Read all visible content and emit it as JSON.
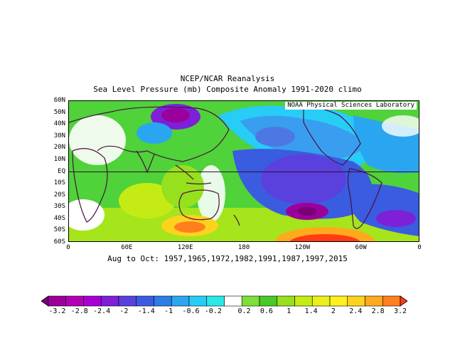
{
  "title": {
    "line1": "NCEP/NCAR Reanalysis",
    "line2": "Sea Level Pressure (mb) Composite Anomaly 1991-2020 climo"
  },
  "credit": "NOAA Physical Sciences Laboratory",
  "caption": "Aug to Oct: 1957,1965,1972,1982,1991,1987,1997,2015",
  "lat_labels": [
    "60N",
    "50N",
    "40N",
    "30N",
    "20N",
    "10N",
    "EQ",
    "10S",
    "20S",
    "30S",
    "40S",
    "50S",
    "60S"
  ],
  "lon_labels": [
    "0",
    "60E",
    "120E",
    "180",
    "120W",
    "60W",
    "0"
  ],
  "colorbar": {
    "labels": [
      "-3.2",
      "-2.8",
      "-2.4",
      "-2",
      "-1.4",
      "-1",
      "-0.6",
      "-0.2",
      "0.2",
      "0.6",
      "1",
      "1.4",
      "2",
      "2.4",
      "2.8",
      "3.2"
    ],
    "colors": [
      "#7b0078",
      "#9b009b",
      "#b400b4",
      "#a800d4",
      "#7d20d8",
      "#5a40dd",
      "#3a5ce0",
      "#2c7de6",
      "#2aa6f0",
      "#27cdf5",
      "#2ae8e8",
      "#ffffff",
      "#7ddf3a",
      "#48c82a",
      "#96e01e",
      "#c4ec14",
      "#e9f01a",
      "#fff01e",
      "#ffd21e",
      "#ffaa1e",
      "#ff7f1e",
      "#ff3c14"
    ]
  },
  "field_colors": {
    "land": "#2f6fdc",
    "coast": "#4a1040",
    "equator": "#3a0a35"
  }
}
